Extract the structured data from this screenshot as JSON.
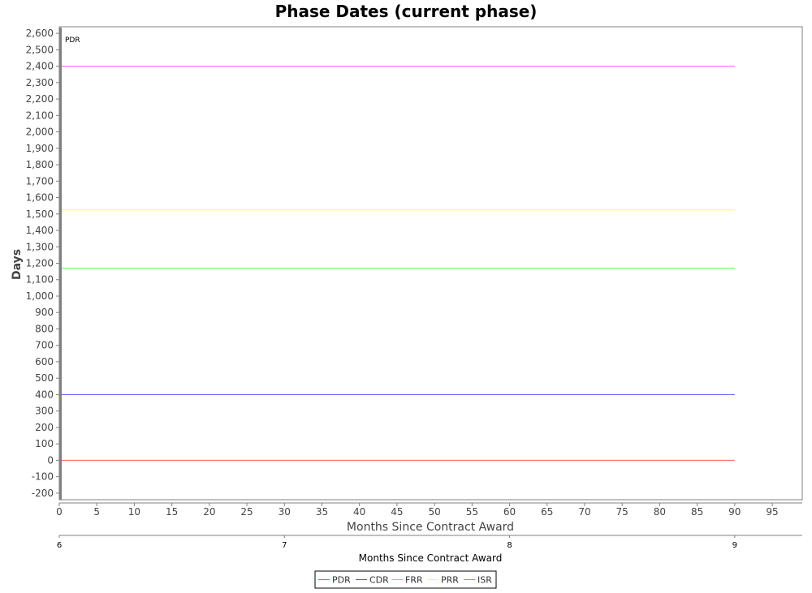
{
  "chart_data": {
    "type": "line",
    "title": "Phase Dates (current phase)",
    "xlabel": "Months Since Contract Award",
    "ylabel": "Days",
    "xlim": [
      0,
      99
    ],
    "ylim": [
      -240,
      2640
    ],
    "x_ticks": [
      0,
      5,
      10,
      15,
      20,
      25,
      30,
      35,
      40,
      45,
      50,
      55,
      60,
      65,
      70,
      75,
      80,
      85,
      90,
      95
    ],
    "y_ticks": [
      -200,
      -100,
      0,
      100,
      200,
      300,
      400,
      500,
      600,
      700,
      800,
      900,
      1000,
      1100,
      1200,
      1300,
      1400,
      1500,
      1600,
      1700,
      1800,
      1900,
      2000,
      2100,
      2200,
      2300,
      2400,
      2500,
      2600
    ],
    "grid": false,
    "marker": {
      "x": 0,
      "label": "PDR"
    },
    "secondary_axis": {
      "label": "Months Since Contract Award",
      "ticks": [
        "6",
        "7",
        "8",
        "9"
      ]
    },
    "legend": {
      "placement": "bottom-center"
    },
    "series": [
      {
        "name": "PDR",
        "color": "#ff5555",
        "x": [
          0,
          90
        ],
        "y": [
          0,
          0
        ]
      },
      {
        "name": "CDR",
        "color": "#5555ff",
        "x": [
          0,
          90
        ],
        "y": [
          400,
          400
        ]
      },
      {
        "name": "FRR",
        "color": "#55ff55",
        "x": [
          0,
          90
        ],
        "y": [
          1170,
          1170
        ]
      },
      {
        "name": "PRR",
        "color": "#ffff55",
        "x": [
          0,
          90
        ],
        "y": [
          1525,
          1525
        ]
      },
      {
        "name": "ISR",
        "color": "#ff55ff",
        "x": [
          0,
          90
        ],
        "y": [
          2400,
          2400
        ]
      }
    ]
  }
}
